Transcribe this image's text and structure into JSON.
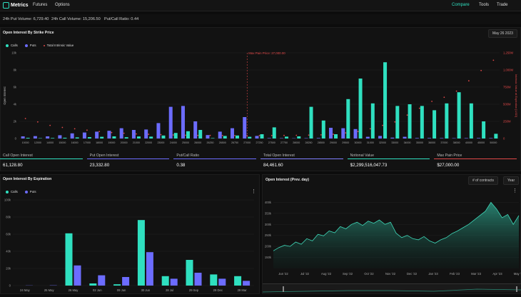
{
  "nav": {
    "brand": "Metrics",
    "links": [
      "Futures",
      "Options"
    ],
    "right": [
      "Compare",
      "Tools",
      "Trade"
    ]
  },
  "stats": {
    "put_volume": "24h Put Volume: 6,729.40",
    "call_volume": "24h Call Volume: 15,206.50",
    "ratio": "Put/Call Ratio: 0.44"
  },
  "strike_panel": {
    "title": "Open Interest By Strike Price",
    "date": "May 26 2023",
    "legend": [
      "Calls",
      "Puts",
      "Total Intrinsic Value"
    ],
    "max_pain_label": "Max Pain Price: 27,000.00",
    "y_left_label": "Open Interest",
    "y_right_label": "Intrinsic Value at Expiration [USD]"
  },
  "metrics": [
    {
      "label": "Call Open Interest",
      "value": "61,128.80",
      "color": "#2fe0c0"
    },
    {
      "label": "Put Open Interest",
      "value": "23,332.80",
      "color": "#6c6cff"
    },
    {
      "label": "Put/Call Ratio",
      "value": "0.38",
      "color": "#6c6cff"
    },
    {
      "label": "Total Open Interest",
      "value": "84,461.60",
      "color": "#7f7fff"
    },
    {
      "label": "Notional Value",
      "value": "$2,299,516,047.73",
      "color": "#2fe0c0"
    },
    {
      "label": "Max Pain Price",
      "value": "$27,000.00",
      "color": "#e04848"
    }
  ],
  "expiry_panel": {
    "title": "Open Interest By Expiration",
    "legend": [
      "Calls",
      "Puts"
    ]
  },
  "prevday_panel": {
    "title": "Open Interest (Prev. day)",
    "select1": "# of contracts",
    "select2": "Year"
  },
  "colors": {
    "calls": "#2fe0c0",
    "puts": "#6c6cff",
    "max_pain": "#e04848"
  },
  "chart_data": [
    {
      "type": "bar",
      "title": "Open Interest By Strike Price",
      "ylabel": "Open Interest",
      "y2label": "Intrinsic Value at Expiration [USD]",
      "ylim": [
        0,
        10000
      ],
      "yticks": [
        "0",
        "2k",
        "4k",
        "6k",
        "8k",
        "10k"
      ],
      "y2ticks": [
        "0",
        "250M",
        "500M",
        "750M",
        "1,000M",
        "1,250M"
      ],
      "max_pain_category": "27000",
      "categories": [
        "10000",
        "12000",
        "14000",
        "15000",
        "16000",
        "17000",
        "18000",
        "19000",
        "20000",
        "21000",
        "22000",
        "23000",
        "24000",
        "25000",
        "26000",
        "26250",
        "26500",
        "26750",
        "27000",
        "27250",
        "27500",
        "27750",
        "28000",
        "28250",
        "28500",
        "29000",
        "29500",
        "30000",
        "31000",
        "32000",
        "33000",
        "34000",
        "35000",
        "36000",
        "37000",
        "38000",
        "40000",
        "45000",
        "50000"
      ],
      "series": [
        {
          "name": "Calls",
          "values": [
            80,
            40,
            60,
            90,
            130,
            160,
            200,
            250,
            150,
            240,
            220,
            350,
            650,
            850,
            1000,
            50,
            300,
            350,
            200,
            500,
            1300,
            220,
            250,
            3700,
            2100,
            500,
            4600,
            7000,
            4100,
            8900,
            3800,
            4000,
            3800,
            3300,
            4100,
            5400,
            4100,
            2000,
            550
          ]
        },
        {
          "name": "Puts",
          "values": [
            250,
            280,
            250,
            380,
            600,
            700,
            800,
            900,
            1200,
            1000,
            1050,
            1800,
            3700,
            3800,
            2000,
            400,
            800,
            1200,
            2500,
            300,
            50,
            40,
            30,
            40,
            60,
            1250,
            1200,
            1100,
            200,
            300,
            100,
            200,
            60,
            60,
            50,
            40,
            50,
            60,
            50
          ]
        },
        {
          "name": "Total Intrinsic Value",
          "values": [
            250,
            200,
            150,
            120,
            100,
            80,
            60,
            45,
            35,
            25,
            20,
            15,
            10,
            6,
            4,
            3,
            2,
            1,
            1,
            1,
            2,
            3,
            5,
            8,
            12,
            20,
            40,
            60,
            100,
            150,
            200,
            300,
            400,
            500,
            560,
            650,
            800,
            950,
            1100
          ]
        }
      ]
    },
    {
      "type": "bar",
      "title": "Open Interest By Expiration",
      "ylim": [
        0,
        100000
      ],
      "yticks": [
        "0",
        "20k",
        "40k",
        "60k",
        "80k",
        "100k"
      ],
      "categories": [
        "24 May",
        "25 May",
        "26 May",
        "02 Jun",
        "09 Jun",
        "30 Jun",
        "28 Jul",
        "29 Sep",
        "29 Dec",
        "29 Mar"
      ],
      "series": [
        {
          "name": "Calls",
          "values": [
            0,
            0,
            61000,
            2500,
            1500,
            76500,
            11000,
            30000,
            13000,
            11000
          ]
        },
        {
          "name": "Puts",
          "values": [
            200,
            300,
            23500,
            12000,
            10000,
            39000,
            8000,
            15000,
            8000,
            5500
          ]
        }
      ]
    },
    {
      "type": "area",
      "title": "Open Interest (Prev. day)",
      "ylim": [
        100000,
        450000
      ],
      "yticks": [
        "150k",
        "200k",
        "250k",
        "300k",
        "350k",
        "400k"
      ],
      "xticks": [
        "Jun '22",
        "Jul '22",
        "Aug '22",
        "Sep '22",
        "Oct '22",
        "Nov '22",
        "Dec '22",
        "Jan '23",
        "Feb '23",
        "Mar '23",
        "Apr '23",
        "May '23"
      ],
      "values": [
        180000,
        195000,
        205000,
        200000,
        220000,
        210000,
        235000,
        225000,
        255000,
        248000,
        270000,
        262000,
        290000,
        280000,
        300000,
        310000,
        295000,
        315000,
        305000,
        320000,
        300000,
        310000,
        260000,
        240000,
        250000,
        235000,
        230000,
        245000,
        225000,
        215000,
        230000,
        240000,
        258000,
        270000,
        285000,
        300000,
        320000,
        340000,
        360000,
        400000,
        370000,
        330000,
        345000,
        300000,
        340000
      ]
    }
  ]
}
